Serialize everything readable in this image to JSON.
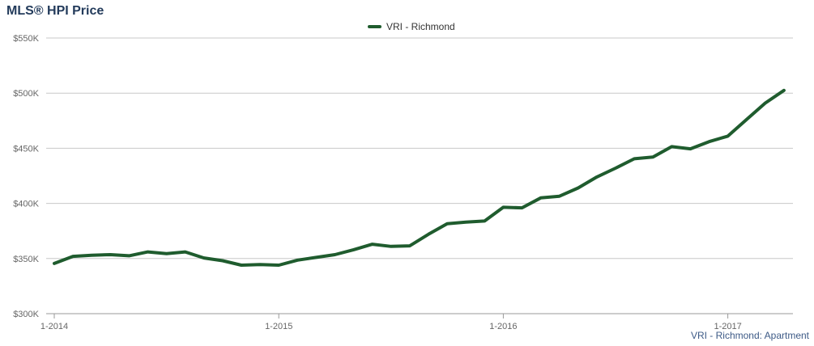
{
  "chart": {
    "title": "MLS® HPI Price",
    "footnote": "VRI - Richmond: Apartment"
  },
  "chart_data": {
    "type": "line",
    "title": "MLS® HPI Price",
    "xlabel": "",
    "ylabel": "",
    "ylim": [
      300000,
      550000
    ],
    "yticks": [
      300000,
      350000,
      400000,
      450000,
      500000,
      550000
    ],
    "ytick_labels": [
      "$300K",
      "$350K",
      "$400K",
      "$450K",
      "$500K",
      "$550K"
    ],
    "xticks": [
      "2014-01",
      "2015-01",
      "2016-01",
      "2017-01"
    ],
    "xtick_labels": [
      "1-2014",
      "1-2015",
      "1-2016",
      "1-2017"
    ],
    "grid": true,
    "legend_position": "top-center",
    "series": [
      {
        "name": "VRI - Richmond",
        "color": "#1f5c2e",
        "x": [
          "2014-01",
          "2014-02",
          "2014-03",
          "2014-04",
          "2014-05",
          "2014-06",
          "2014-07",
          "2014-08",
          "2014-09",
          "2014-10",
          "2014-11",
          "2014-12",
          "2015-01",
          "2015-02",
          "2015-03",
          "2015-04",
          "2015-05",
          "2015-06",
          "2015-07",
          "2015-08",
          "2015-09",
          "2015-10",
          "2015-11",
          "2015-12",
          "2016-01",
          "2016-02",
          "2016-03",
          "2016-04",
          "2016-05",
          "2016-06",
          "2016-07",
          "2016-08",
          "2016-09",
          "2016-10",
          "2016-11",
          "2016-12",
          "2017-01",
          "2017-02",
          "2017-03",
          "2017-04"
        ],
        "values": [
          345500,
          352000,
          353000,
          353500,
          352500,
          356000,
          354500,
          356000,
          350500,
          348000,
          344000,
          344500,
          344000,
          348500,
          351000,
          353500,
          358000,
          363000,
          361000,
          361500,
          372000,
          381500,
          383000,
          384000,
          396500,
          396000,
          405000,
          406500,
          414000,
          424000,
          432000,
          440500,
          442000,
          451500,
          449500,
          456000,
          461000,
          476000,
          491000,
          502500
        ]
      }
    ]
  }
}
